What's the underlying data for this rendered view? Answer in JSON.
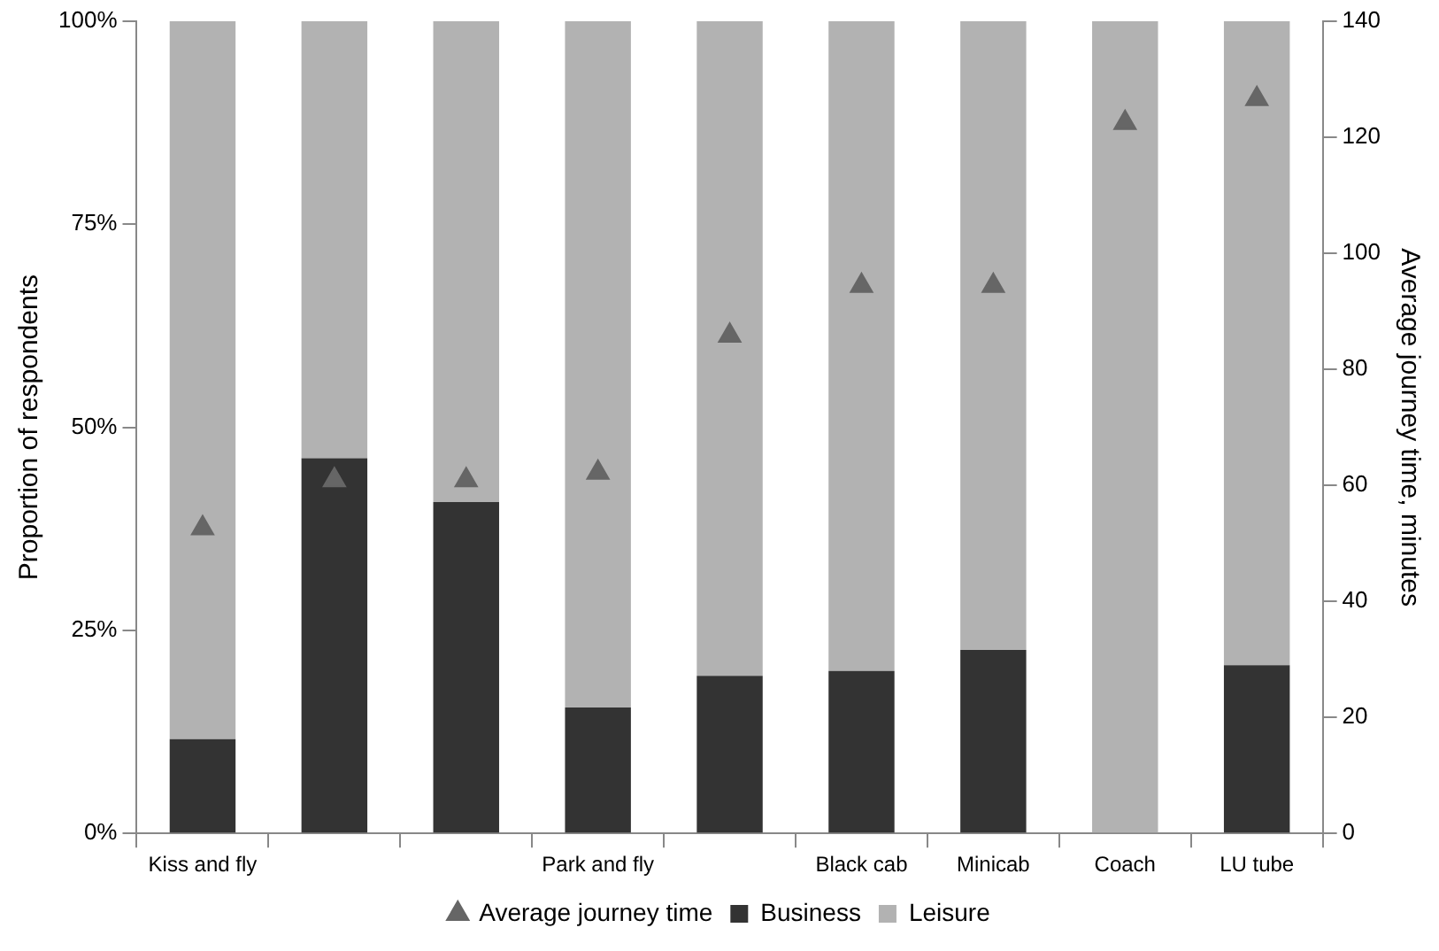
{
  "chart_data": {
    "type": "bar",
    "stacked": true,
    "categories": [
      "Kiss and fly",
      null,
      null,
      "Park and fly",
      null,
      "Black cab",
      "Minicab",
      "Coach",
      "LU tube"
    ],
    "series": [
      {
        "name": "Business",
        "color": "#333333",
        "values": [
          11.6,
          46.2,
          40.8,
          15.5,
          19.4,
          20,
          22.6,
          0,
          20.7
        ]
      },
      {
        "name": "Leisure",
        "color": "#b2b2b2",
        "values": [
          88.4,
          53.8,
          59.2,
          84.5,
          80.6,
          80,
          77.4,
          100,
          79.3
        ]
      },
      {
        "name": "Average journey time",
        "type": "scatter",
        "axis": "y2",
        "marker": "triangle",
        "color": "#666666",
        "values": [
          52.6,
          60.9,
          60.9,
          62.2,
          85.8,
          94.4,
          94.4,
          122.5,
          126.6
        ]
      }
    ],
    "ylabel": "Proportion of respondents",
    "y2label": "Average journey time, minutes",
    "ylim": [
      0,
      100
    ],
    "yticks": [
      {
        "value": 0,
        "label": "0%"
      },
      {
        "value": 25,
        "label": "25%"
      },
      {
        "value": 50,
        "label": "50%"
      },
      {
        "value": 75,
        "label": "75%"
      },
      {
        "value": 100,
        "label": "100%"
      }
    ],
    "y2lim": [
      0,
      140
    ],
    "y2ticks": [
      0,
      20,
      40,
      60,
      80,
      100,
      120,
      140
    ],
    "grid": false,
    "legend": "bottom"
  }
}
